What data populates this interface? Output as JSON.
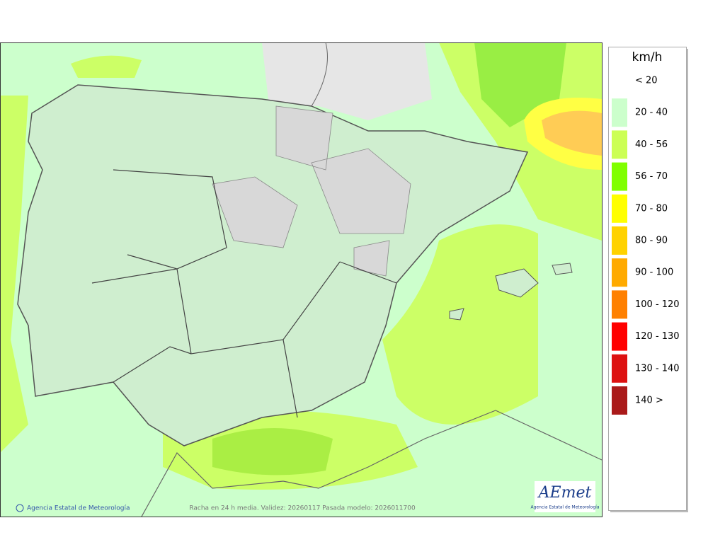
{
  "legend": {
    "unit": "km/h",
    "items": [
      {
        "label": "< 20",
        "color": null
      },
      {
        "label": "20 - 40",
        "color": "#ccffcc"
      },
      {
        "label": "40 - 56",
        "color": "#ccff55"
      },
      {
        "label": "56 - 70",
        "color": "#80ff00"
      },
      {
        "label": "70 - 80",
        "color": "#ffff00"
      },
      {
        "label": "80 - 90",
        "color": "#ffd200"
      },
      {
        "label": "90 - 100",
        "color": "#ffaa00"
      },
      {
        "label": "100 - 120",
        "color": "#ff8000"
      },
      {
        "label": "120 - 130",
        "color": "#ff0000"
      },
      {
        "label": "130 - 140",
        "color": "#dd1111"
      },
      {
        "label": "140 >",
        "color": "#aa1a1a"
      }
    ]
  },
  "footer": {
    "credit": "Agencia Estatal de Meteorología",
    "caption": "Racha en 24 h media. Validez: 20260117 Pasada modelo: 2026011700"
  },
  "logo": {
    "name": "AEmet",
    "subtitle": "Agencia Estatal de Meteorología"
  }
}
